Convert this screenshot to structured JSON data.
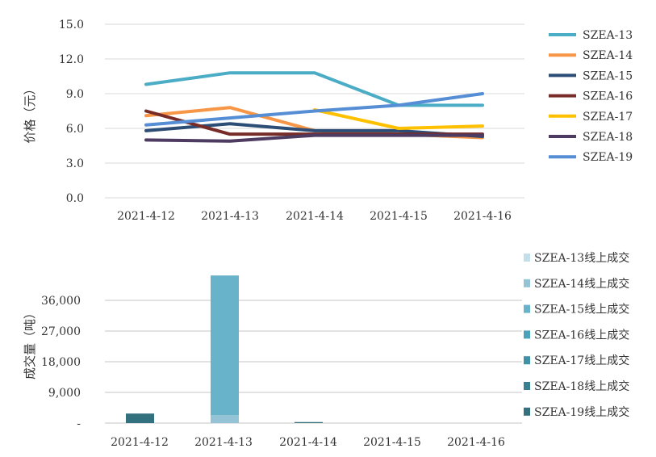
{
  "chart_data": [
    {
      "type": "line",
      "categories": [
        "2021-4-12",
        "2021-4-13",
        "2021-4-14",
        "2021-4-15",
        "2021-4-16"
      ],
      "ylabel": "价格（元）",
      "ylim": [
        0,
        15
      ],
      "yticks": [
        "0.0",
        "3.0",
        "6.0",
        "9.0",
        "12.0",
        "15.0"
      ],
      "grid": true,
      "legend": "right",
      "series": [
        {
          "name": "SZEA-13",
          "color": "#4bacc6",
          "values": [
            9.8,
            10.8,
            10.8,
            8.0,
            8.0
          ]
        },
        {
          "name": "SZEA-14",
          "color": "#f79646",
          "values": [
            7.1,
            7.8,
            5.8,
            5.5,
            5.2
          ]
        },
        {
          "name": "SZEA-15",
          "color": "#2c4d75",
          "values": [
            5.8,
            6.4,
            5.8,
            5.8,
            5.3
          ]
        },
        {
          "name": "SZEA-16",
          "color": "#772c2a",
          "values": [
            7.5,
            5.5,
            5.5,
            5.5,
            5.5
          ]
        },
        {
          "name": "SZEA-17",
          "color": "#ffc000",
          "values": [
            null,
            null,
            7.6,
            6.0,
            6.2
          ]
        },
        {
          "name": "SZEA-18",
          "color": "#4d3b62",
          "values": [
            5.0,
            4.9,
            5.4,
            5.4,
            5.4
          ]
        },
        {
          "name": "SZEA-19",
          "color": "#558ed5",
          "values": [
            6.3,
            6.9,
            7.5,
            8.0,
            9.0
          ]
        }
      ]
    },
    {
      "type": "bar",
      "stacked": true,
      "categories": [
        "2021-4-12",
        "2021-4-13",
        "2021-4-14",
        "2021-4-15",
        "2021-4-16"
      ],
      "ylabel": "成交量（吨）",
      "ylim": [
        0,
        45000
      ],
      "yticks": [
        "-",
        "9,000",
        "18,000",
        "27,000",
        "36,000"
      ],
      "grid": true,
      "legend": "right",
      "series": [
        {
          "name": "SZEA-13线上成交",
          "color": "#c3e0ea",
          "values": [
            0,
            0,
            0,
            0,
            0
          ]
        },
        {
          "name": "SZEA-14线上成交",
          "color": "#93c3d5",
          "values": [
            0,
            2300,
            0,
            0,
            0
          ]
        },
        {
          "name": "SZEA-15线上成交",
          "color": "#68b3ca",
          "values": [
            0,
            41000,
            0,
            0,
            0
          ]
        },
        {
          "name": "SZEA-16线上成交",
          "color": "#4ba3bb",
          "values": [
            0,
            0,
            0,
            0,
            0
          ]
        },
        {
          "name": "SZEA-17线上成交",
          "color": "#3e92a6",
          "values": [
            0,
            0,
            0,
            0,
            0
          ]
        },
        {
          "name": "SZEA-18线上成交",
          "color": "#388092",
          "values": [
            0,
            0,
            0,
            0,
            0
          ]
        },
        {
          "name": "SZEA-19线上成交",
          "color": "#33717f",
          "values": [
            2800,
            0,
            300,
            0,
            0
          ]
        }
      ]
    }
  ]
}
